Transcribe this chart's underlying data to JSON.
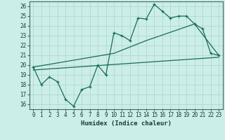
{
  "xlabel": "Humidex (Indice chaleur)",
  "xlim": [
    -0.5,
    23.5
  ],
  "ylim": [
    15.5,
    26.5
  ],
  "xticks": [
    0,
    1,
    2,
    3,
    4,
    5,
    6,
    7,
    8,
    9,
    10,
    11,
    12,
    13,
    14,
    15,
    16,
    17,
    18,
    19,
    20,
    21,
    22,
    23
  ],
  "yticks": [
    16,
    17,
    18,
    19,
    20,
    21,
    22,
    23,
    24,
    25,
    26
  ],
  "bg_color": "#cceee8",
  "line_color": "#1a6b5a",
  "grid_color": "#aad4cc",
  "line1_x": [
    0,
    1,
    2,
    3,
    4,
    5,
    6,
    7,
    8,
    9,
    10,
    11,
    12,
    13,
    14,
    15,
    16,
    17,
    18,
    19,
    20,
    21,
    22,
    23
  ],
  "line1_y": [
    19.8,
    18.0,
    18.8,
    18.3,
    16.5,
    15.8,
    17.5,
    17.8,
    20.0,
    19.0,
    23.3,
    23.0,
    22.5,
    24.8,
    24.7,
    26.2,
    25.5,
    24.8,
    25.0,
    25.0,
    24.2,
    23.7,
    21.2,
    21.0
  ],
  "line2_x": [
    0,
    10,
    14,
    20,
    23
  ],
  "line2_y": [
    19.8,
    21.2,
    22.5,
    24.2,
    21.0
  ],
  "line3_x": [
    0,
    23
  ],
  "line3_y": [
    19.5,
    20.8
  ]
}
